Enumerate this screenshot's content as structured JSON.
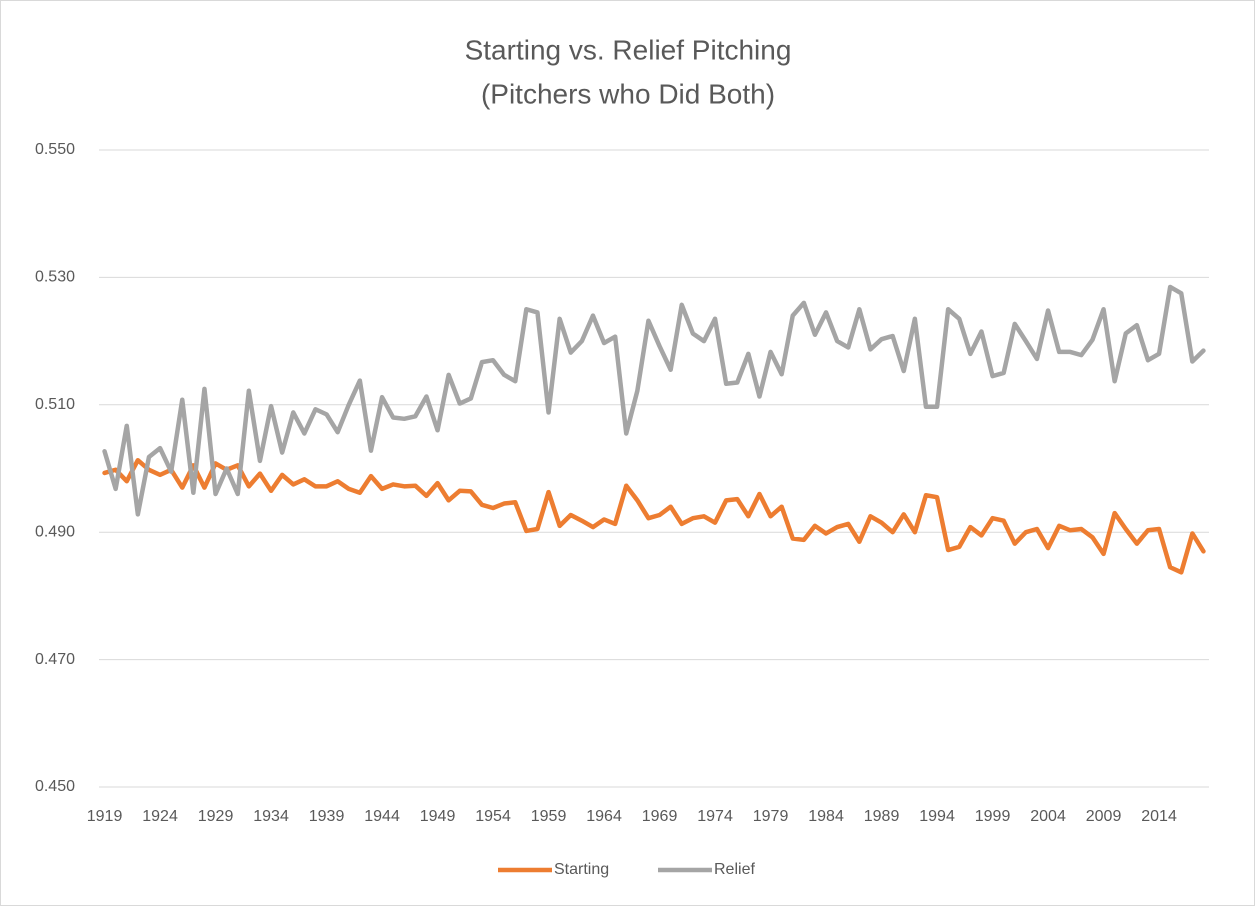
{
  "chart_data": {
    "type": "line",
    "title": "Starting vs. Relief Pitching",
    "subtitle": "(Pitchers who Did Both)",
    "categories": [
      "1919",
      null,
      null,
      null,
      null,
      "1924",
      null,
      null,
      null,
      null,
      "1929",
      null,
      null,
      null,
      null,
      "1934",
      null,
      null,
      null,
      null,
      "1939",
      null,
      null,
      null,
      null,
      "1944",
      null,
      null,
      null,
      null,
      "1949",
      null,
      null,
      null,
      null,
      "1954",
      null,
      null,
      null,
      null,
      "1959",
      null,
      null,
      null,
      null,
      "1964",
      null,
      null,
      null,
      null,
      "1969",
      null,
      null,
      null,
      null,
      "1974",
      null,
      null,
      null,
      null,
      "1979",
      null,
      null,
      null,
      null,
      "1984",
      null,
      null,
      null,
      null,
      "1989",
      null,
      null,
      null,
      null,
      "1994",
      null,
      null,
      null,
      null,
      "1999",
      null,
      null,
      null,
      null,
      "2004",
      null,
      null,
      null,
      null,
      "2009",
      null,
      null,
      null,
      null,
      "2014",
      null,
      null,
      null,
      null
    ],
    "series": [
      {
        "name": "Starting",
        "color": "#ed7d31",
        "values": [
          0.4993,
          0.4998,
          0.498,
          0.5013,
          0.4998,
          0.499,
          0.4998,
          0.497,
          0.5005,
          0.497,
          0.5008,
          0.4998,
          0.5005,
          0.4972,
          0.4992,
          0.4965,
          0.499,
          0.4975,
          0.4983,
          0.4972,
          0.4972,
          0.498,
          0.4968,
          0.4962,
          0.4988,
          0.4968,
          0.4975,
          0.4972,
          0.4973,
          0.4957,
          0.4977,
          0.495,
          0.4965,
          0.4964,
          0.4943,
          0.4938,
          0.4945,
          0.4947,
          0.4902,
          0.4905,
          0.4963,
          0.491,
          0.4927,
          0.4918,
          0.4908,
          0.492,
          0.4913,
          0.4973,
          0.495,
          0.4922,
          0.4927,
          0.494,
          0.4913,
          0.4922,
          0.4925,
          0.4915,
          0.495,
          0.4952,
          0.4925,
          0.496,
          0.4925,
          0.494,
          0.489,
          0.4888,
          0.491,
          0.4898,
          0.4908,
          0.4913,
          0.4885,
          0.4925,
          0.4915,
          0.49,
          0.4928,
          0.49,
          0.4958,
          0.4955,
          0.4872,
          0.4877,
          0.4908,
          0.4895,
          0.4922,
          0.4918,
          0.4882,
          0.49,
          0.4905,
          0.4875,
          0.491,
          0.4903,
          0.4905,
          0.4892,
          0.4866,
          0.493,
          0.4905,
          0.4882,
          0.4903,
          0.4905,
          0.4845,
          0.4837,
          0.4898,
          0.487
        ]
      },
      {
        "name": "Relief",
        "color": "#a5a5a5",
        "values": [
          0.5027,
          0.4968,
          0.5067,
          0.4928,
          0.5018,
          0.5032,
          0.4995,
          0.5108,
          0.4962,
          0.5125,
          0.496,
          0.5,
          0.496,
          0.5122,
          0.5012,
          0.5098,
          0.5025,
          0.5088,
          0.5055,
          0.5093,
          0.5085,
          0.5057,
          0.51,
          0.5138,
          0.5028,
          0.5112,
          0.508,
          0.5078,
          0.5082,
          0.5113,
          0.506,
          0.5147,
          0.5102,
          0.511,
          0.5167,
          0.517,
          0.5147,
          0.5137,
          0.525,
          0.5245,
          0.5088,
          0.5235,
          0.5182,
          0.52,
          0.524,
          0.5197,
          0.5207,
          0.5055,
          0.5122,
          0.5232,
          0.5192,
          0.5155,
          0.5257,
          0.5212,
          0.52,
          0.5235,
          0.5133,
          0.5135,
          0.518,
          0.5113,
          0.5183,
          0.5148,
          0.524,
          0.526,
          0.521,
          0.5245,
          0.52,
          0.519,
          0.525,
          0.5187,
          0.5203,
          0.5208,
          0.5153,
          0.5235,
          0.5097,
          0.5097,
          0.525,
          0.5235,
          0.518,
          0.5215,
          0.5145,
          0.515,
          0.5227,
          0.52,
          0.5172,
          0.5248,
          0.5183,
          0.5183,
          0.5178,
          0.5202,
          0.525,
          0.5137,
          0.5212,
          0.5225,
          0.517,
          0.518,
          0.5285,
          0.5275,
          0.5168,
          0.5185
        ]
      }
    ],
    "ylim": [
      0.45,
      0.55
    ],
    "yticks": [
      {
        "value": 0.45,
        "label": "0.450"
      },
      {
        "value": 0.47,
        "label": "0.470"
      },
      {
        "value": 0.49,
        "label": "0.490"
      },
      {
        "value": 0.51,
        "label": "0.510"
      },
      {
        "value": 0.53,
        "label": "0.530"
      },
      {
        "value": 0.55,
        "label": "0.550"
      }
    ],
    "grid": true,
    "legend": "bottom"
  }
}
